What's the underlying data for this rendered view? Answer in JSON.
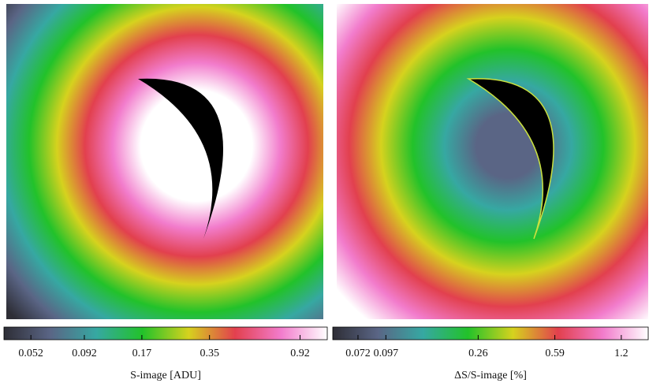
{
  "chart_data": [
    {
      "type": "image",
      "colorbar_label": "S-image [ADU]",
      "scale": "log",
      "clim": [
        0.039,
        1.23
      ],
      "ticks": [
        0.052,
        0.092,
        0.17,
        0.35,
        0.92
      ],
      "colors": [
        "#2e2e36",
        "#5a6585",
        "#36a8a2",
        "#22c22a",
        "#d6d21e",
        "#e2404e",
        "#f27ccc",
        "#ffffff"
      ]
    },
    {
      "type": "image",
      "colorbar_label": "ΔS/S-image [%]",
      "scale": "log",
      "clim": [
        0.055,
        1.6
      ],
      "ticks": [
        0.072,
        0.097,
        0.26,
        0.59,
        1.2
      ],
      "colors": [
        "#2e2e36",
        "#5a6585",
        "#36a8a2",
        "#22c22a",
        "#d6d21e",
        "#e2404e",
        "#f27ccc",
        "#ffffff"
      ]
    }
  ]
}
